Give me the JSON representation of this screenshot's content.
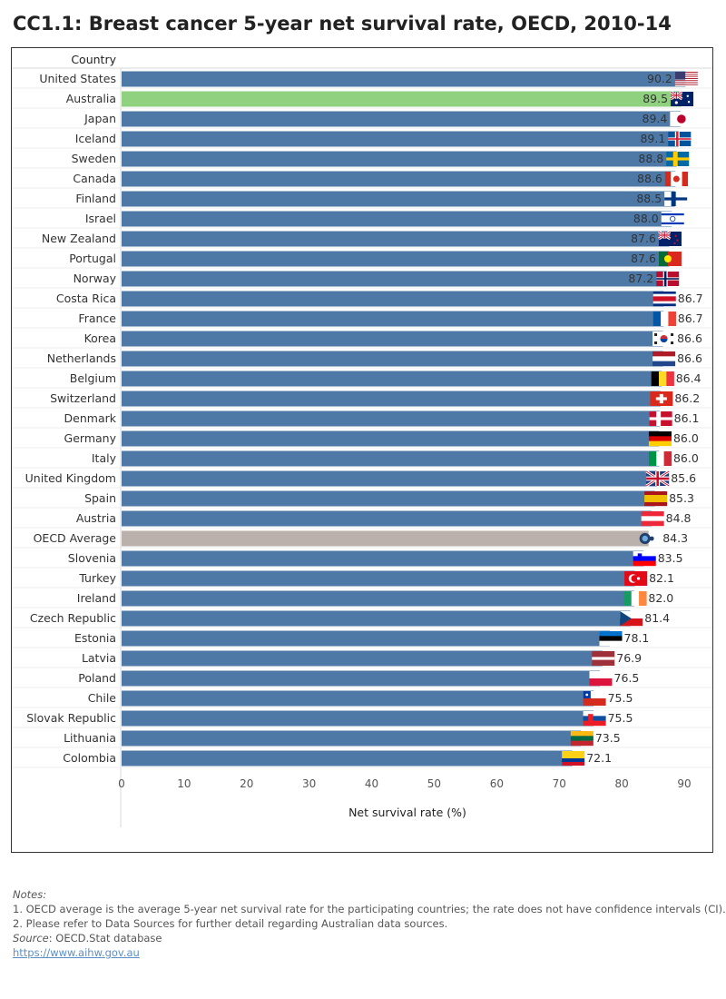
{
  "title": "CC1.1: Breast cancer 5-year net survival rate, OECD, 2010-14",
  "chart_data": {
    "type": "bar",
    "orientation": "horizontal",
    "column_header": "Country",
    "xlabel": "Net survival rate (%)",
    "xlim": [
      0,
      90
    ],
    "xticks": [
      "0",
      "10",
      "20",
      "30",
      "40",
      "50",
      "60",
      "70",
      "80",
      "90"
    ],
    "categories": [
      "United States",
      "Australia",
      "Japan",
      "Iceland",
      "Sweden",
      "Canada",
      "Finland",
      "Israel",
      "New Zealand",
      "Portugal",
      "Norway",
      "Costa Rica",
      "France",
      "Korea",
      "Netherlands",
      "Belgium",
      "Switzerland",
      "Denmark",
      "Germany",
      "Italy",
      "United Kingdom",
      "Spain",
      "Austria",
      "OECD Average",
      "Slovenia",
      "Turkey",
      "Ireland",
      "Czech Republic",
      "Estonia",
      "Latvia",
      "Poland",
      "Chile",
      "Slovak Republic",
      "Lithuania",
      "Colombia"
    ],
    "values": [
      90.2,
      89.5,
      89.4,
      89.1,
      88.8,
      88.6,
      88.5,
      88.0,
      87.6,
      87.6,
      87.2,
      86.7,
      86.7,
      86.6,
      86.6,
      86.4,
      86.2,
      86.1,
      86.0,
      86.0,
      85.6,
      85.3,
      84.8,
      84.3,
      83.5,
      82.1,
      82.0,
      81.4,
      78.1,
      76.9,
      76.5,
      75.5,
      75.5,
      73.5,
      72.1
    ],
    "value_labels": [
      "90.2",
      "89.5",
      "89.4",
      "89.1",
      "88.8",
      "88.6",
      "88.5",
      "88.0",
      "87.6",
      "87.6",
      "87.2",
      "86.7",
      "86.7",
      "86.6",
      "86.6",
      "86.4",
      "86.2",
      "86.1",
      "86.0",
      "86.0",
      "85.6",
      "85.3",
      "84.8",
      "84.3",
      "83.5",
      "82.1",
      "82.0",
      "81.4",
      "78.1",
      "76.9",
      "76.5",
      "75.5",
      "75.5",
      "73.5",
      "72.1"
    ],
    "colors": {
      "default": "#4e79a7",
      "Australia": "#8fd17e",
      "OECD Average": "#bab0ac"
    },
    "grid": false,
    "legend": "none",
    "flag_icons": [
      "us-flag-icon",
      "australia-flag-icon",
      "japan-flag-icon",
      "iceland-flag-icon",
      "sweden-flag-icon",
      "canada-flag-icon",
      "finland-flag-icon",
      "israel-flag-icon",
      "new-zealand-flag-icon",
      "portugal-flag-icon",
      "norway-flag-icon",
      "costa-rica-flag-icon",
      "france-flag-icon",
      "korea-flag-icon",
      "netherlands-flag-icon",
      "belgium-flag-icon",
      "switzerland-flag-icon",
      "denmark-flag-icon",
      "germany-flag-icon",
      "italy-flag-icon",
      "uk-flag-icon",
      "spain-flag-icon",
      "austria-flag-icon",
      "oecd-logo-icon",
      "slovenia-flag-icon",
      "turkey-flag-icon",
      "ireland-flag-icon",
      "czech-flag-icon",
      "estonia-flag-icon",
      "latvia-flag-icon",
      "poland-flag-icon",
      "chile-flag-icon",
      "slovakia-flag-icon",
      "lithuania-flag-icon",
      "colombia-flag-icon"
    ]
  },
  "notes": {
    "heading": "Notes:",
    "items": [
      "1. OECD average is the average 5-year net survival rate for the participating countries; the rate does not have confidence intervals (CI).",
      "2. Please refer to Data Sources for further detail regarding Australian data sources."
    ],
    "source_label": "Source",
    "source_text": ": OECD.Stat database",
    "link_text": "https://www.aihw.gov.au"
  }
}
